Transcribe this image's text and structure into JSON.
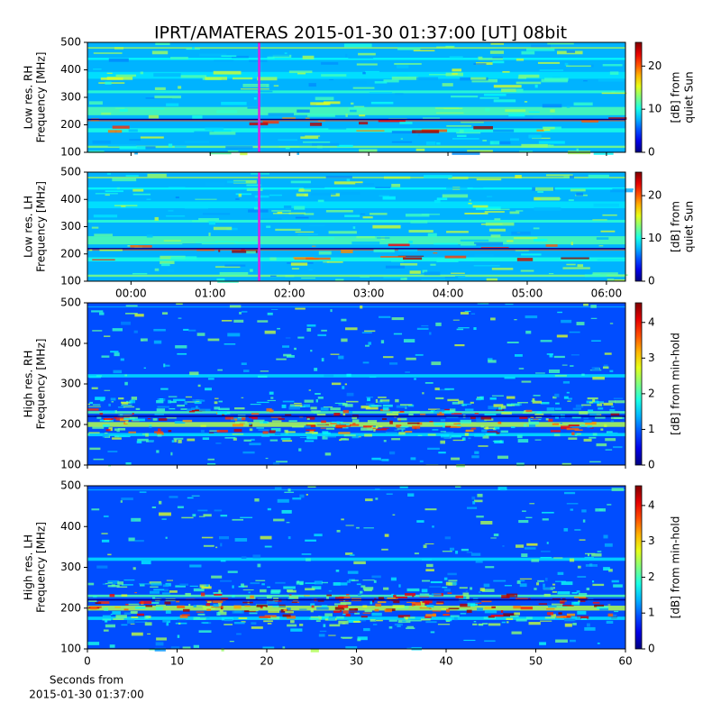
{
  "chart_data": [
    {
      "type": "spectrogram",
      "title": "IPRT/AMATERAS 2015-01-30 01:37:00 [UT]   08bit",
      "ylabel": [
        "Low res. RH",
        "Frequency [MHz]"
      ],
      "ylim": [
        100,
        500
      ],
      "yticks": [
        100,
        200,
        300,
        400,
        500
      ],
      "xlim": [
        -0.55,
        6.24
      ],
      "xticks": [
        0,
        1,
        2,
        3,
        4,
        5,
        6
      ],
      "show_xtick_labels": false,
      "marker_x": 1.617,
      "marker_color": "#e020e0",
      "colormap": "jet",
      "clim": [
        0,
        25.5
      ],
      "cticks": [
        0,
        10,
        20
      ],
      "colorbar_label": [
        "[dB] from",
        "quiet Sun"
      ]
    },
    {
      "type": "spectrogram",
      "ylabel": [
        "Low res. LH",
        "Frequency [MHz]"
      ],
      "ylim": [
        100,
        500
      ],
      "yticks": [
        100,
        200,
        300,
        400,
        500
      ],
      "xlim": [
        -0.55,
        6.24
      ],
      "xticks": [
        {
          "value": 0,
          "label": "00:00"
        },
        {
          "value": 1,
          "label": "01:00"
        },
        {
          "value": 2,
          "label": "02:00"
        },
        {
          "value": 3,
          "label": "03:00"
        },
        {
          "value": 4,
          "label": "04:00"
        },
        {
          "value": 5,
          "label": "05:00"
        },
        {
          "value": 6,
          "label": "06:00"
        }
      ],
      "show_xtick_labels": true,
      "marker_x": 1.617,
      "marker_color": "#e020e0",
      "colormap": "jet",
      "clim": [
        0,
        25.5
      ],
      "cticks": [
        0,
        10,
        20
      ],
      "colorbar_label": [
        "[dB] from",
        "quiet Sun"
      ]
    },
    {
      "type": "spectrogram",
      "ylabel": [
        "High res. RH",
        "Frequency [MHz]"
      ],
      "ylim": [
        100,
        500
      ],
      "yticks": [
        100,
        200,
        300,
        400,
        500
      ],
      "xlim": [
        0,
        60
      ],
      "xticks": [
        0,
        10,
        20,
        30,
        40,
        50,
        60
      ],
      "show_xtick_labels": false,
      "colormap": "jet",
      "clim": [
        0,
        4.55
      ],
      "cticks": [
        0,
        1,
        2,
        3,
        4
      ],
      "colorbar_label": [
        "[dB] from min-hold"
      ]
    },
    {
      "type": "spectrogram",
      "ylabel": [
        "High res. LH",
        "Frequency [MHz]"
      ],
      "ylim": [
        100,
        500
      ],
      "yticks": [
        100,
        200,
        300,
        400,
        500
      ],
      "xlim": [
        0,
        60
      ],
      "xticks": [
        0,
        10,
        20,
        30,
        40,
        50,
        60
      ],
      "show_xtick_labels": true,
      "xlabel": [
        "Seconds from",
        "2015-01-30 01:37:00"
      ],
      "colormap": "jet",
      "clim": [
        0,
        4.55
      ],
      "cticks": [
        0,
        1,
        2,
        3,
        4
      ],
      "colorbar_label": [
        "[dB] from min-hold"
      ]
    }
  ]
}
